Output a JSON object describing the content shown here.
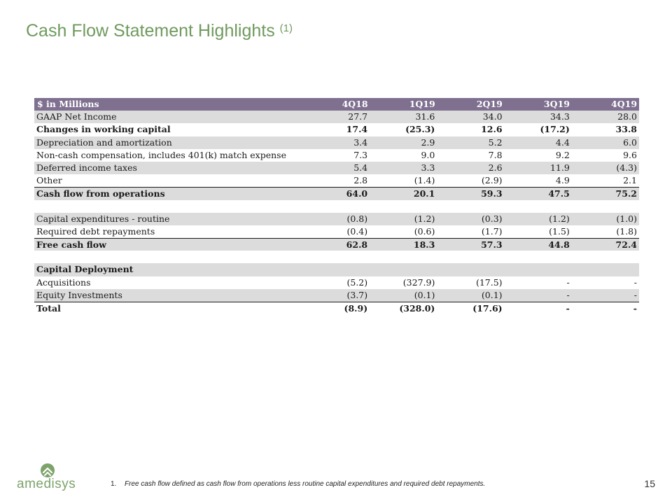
{
  "slide": {
    "title": "Cash Flow Statement Highlights",
    "title_sup": "(1)",
    "page_number": "15"
  },
  "brand": {
    "logo_text": "amedisys",
    "accent_color": "#6f9a5e",
    "header_color": "#7f7090"
  },
  "table": {
    "header": [
      "$ in Millions",
      "4Q18",
      "1Q19",
      "2Q19",
      "3Q19",
      "4Q19"
    ],
    "rows": [
      {
        "label": "GAAP Net Income",
        "values": [
          "27.7",
          "31.6",
          "34.0",
          "34.3",
          "28.0"
        ]
      },
      {
        "label": "Changes in working capital",
        "values": [
          "17.4",
          "(25.3)",
          "12.6",
          "(17.2)",
          "33.8"
        ]
      },
      {
        "label": "Depreciation and amortization",
        "values": [
          "3.4",
          "2.9",
          "5.2",
          "4.4",
          "6.0"
        ]
      },
      {
        "label": "Non-cash compensation, includes 401(k) match expense",
        "values": [
          "7.3",
          "9.0",
          "7.8",
          "9.2",
          "9.6"
        ]
      },
      {
        "label": "Deferred income taxes",
        "values": [
          "5.4",
          "3.3",
          "2.6",
          "11.9",
          "(4.3)"
        ]
      },
      {
        "label": "Other",
        "values": [
          "2.8",
          "(1.4)",
          "(2.9)",
          "4.9",
          "2.1"
        ]
      },
      {
        "label": "Cash flow from operations",
        "values": [
          "64.0",
          "20.1",
          "59.3",
          "47.5",
          "75.2"
        ]
      },
      {
        "label": "Capital expenditures - routine",
        "values": [
          "(0.8)",
          "(1.2)",
          "(0.3)",
          "(1.2)",
          "(1.0)"
        ]
      },
      {
        "label": "Required debt repayments",
        "values": [
          "(0.4)",
          "(0.6)",
          "(1.7)",
          "(1.5)",
          "(1.8)"
        ]
      },
      {
        "label": "Free cash flow",
        "values": [
          "62.8",
          "18.3",
          "57.3",
          "44.8",
          "72.4"
        ]
      },
      {
        "label": "Capital Deployment",
        "values": [
          "",
          "",
          "",
          "",
          ""
        ]
      },
      {
        "label": "Acquisitions",
        "values": [
          "(5.2)",
          "(327.9)",
          "(17.5)",
          "-",
          "-"
        ]
      },
      {
        "label": "Equity Investments",
        "values": [
          "(3.7)",
          "(0.1)",
          "(0.1)",
          "-",
          "-"
        ]
      },
      {
        "label": "Total",
        "values": [
          "(8.9)",
          "(328.0)",
          "(17.6)",
          "-",
          "-"
        ]
      }
    ]
  },
  "footnote": {
    "number": "1.",
    "text": "Free cash flow defined as cash flow from operations less routine capital expenditures and required debt repayments."
  }
}
